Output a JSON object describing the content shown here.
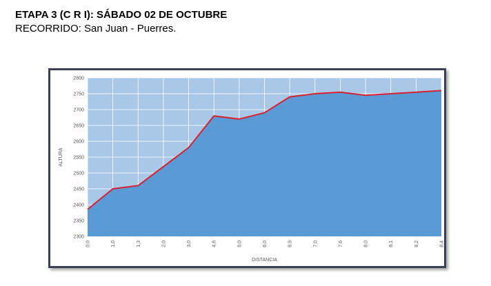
{
  "header": {
    "title": "ETAPA 3 (C R I): SÁBADO 02 DE OCTUBRE",
    "subtitle": "RECORRIDO: San Juan - Puerres."
  },
  "chart_data": {
    "type": "area",
    "title": "",
    "xlabel": "DISTANCIA",
    "ylabel": "ALTURA",
    "categories": [
      "0,0",
      "1,0",
      "1,3",
      "2,0",
      "3,0",
      "4,6",
      "5,0",
      "6,0",
      "6,9",
      "7,0",
      "7,6",
      "8,0",
      "8,1",
      "8,2",
      "8,4"
    ],
    "series": [
      {
        "values": [
          2385,
          2450,
          2460,
          2520,
          2580,
          2680,
          2670,
          2690,
          2740,
          2750,
          2755,
          2745,
          2750,
          2755,
          2760
        ]
      }
    ],
    "ylim": [
      2300,
      2800
    ],
    "yticks": [
      2300,
      2350,
      2400,
      2450,
      2500,
      2550,
      2600,
      2650,
      2700,
      2750,
      2800
    ],
    "grid": true,
    "colors": {
      "fill": "#5b9bd5",
      "line": "#d9202e",
      "background": "#a9c8e8",
      "grid": "#ffffff"
    }
  }
}
